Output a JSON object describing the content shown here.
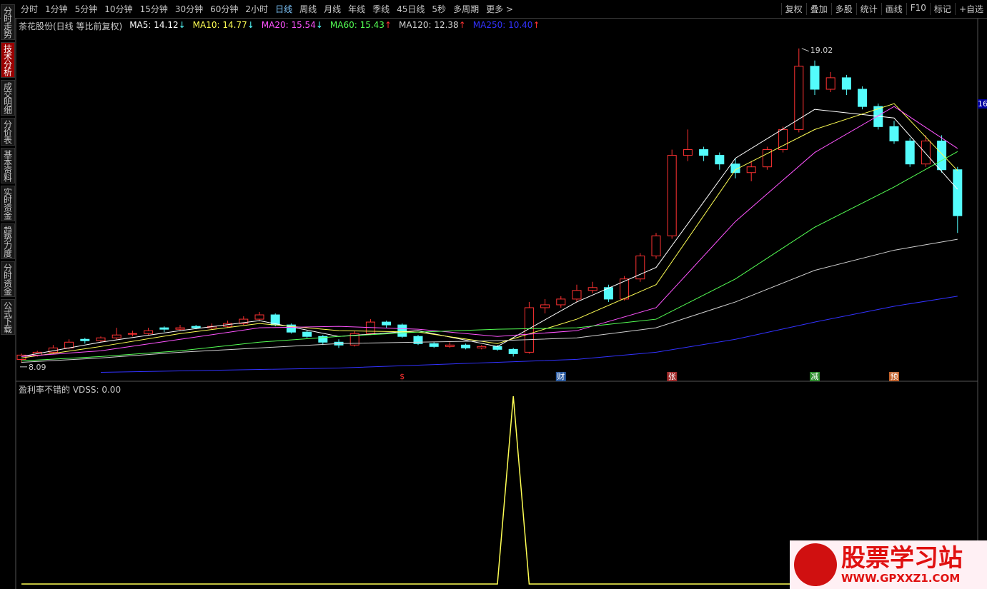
{
  "toolbar": {
    "items": [
      "分时",
      "1分钟",
      "5分钟",
      "10分钟",
      "15分钟",
      "30分钟",
      "60分钟",
      "2小时",
      "日线",
      "周线",
      "月线",
      "年线",
      "季线",
      "45日线",
      "5秒",
      "多周期",
      "更多 >"
    ],
    "active_index": 8,
    "right_items": [
      "复权",
      "叠加",
      "多股",
      "统计",
      "画线",
      "F10",
      "标记",
      "+自选"
    ]
  },
  "side_tabs": [
    "分时走势",
    "技术分析",
    "成交明细",
    "分价表",
    "基本资料",
    "实时资金",
    "趋势力度",
    "分时资金",
    "公式下载"
  ],
  "side_active_index": 1,
  "right_tag": "16",
  "watermark": {
    "title": "股票学习站",
    "url": "WWW.GPXXZ1.COM"
  },
  "chart_data": [
    {
      "type": "candlestick",
      "title": "茶花股份(日线 等比前复权)",
      "ylim": [
        7.54,
        19.96
      ],
      "up_color": "#ff3232",
      "down_color": "#54fcfc",
      "candles": [
        [
          8.2,
          8.4,
          8.09,
          8.35
        ],
        [
          8.35,
          8.5,
          8.3,
          8.45
        ],
        [
          8.45,
          8.7,
          8.4,
          8.6
        ],
        [
          8.6,
          8.9,
          8.55,
          8.8
        ],
        [
          8.9,
          8.95,
          8.75,
          8.85
        ],
        [
          8.85,
          9.0,
          8.8,
          8.95
        ],
        [
          8.95,
          9.3,
          8.9,
          9.05
        ],
        [
          9.1,
          9.2,
          9.0,
          9.1
        ],
        [
          9.1,
          9.3,
          9.05,
          9.2
        ],
        [
          9.3,
          9.35,
          9.15,
          9.25
        ],
        [
          9.25,
          9.4,
          9.2,
          9.3
        ],
        [
          9.35,
          9.4,
          9.25,
          9.3
        ],
        [
          9.3,
          9.45,
          9.25,
          9.35
        ],
        [
          9.35,
          9.55,
          9.3,
          9.45
        ],
        [
          9.45,
          9.7,
          9.4,
          9.6
        ],
        [
          9.6,
          9.85,
          9.55,
          9.75
        ],
        [
          9.75,
          9.8,
          9.35,
          9.4
        ],
        [
          9.4,
          9.45,
          9.1,
          9.15
        ],
        [
          9.15,
          9.2,
          8.95,
          9.0
        ],
        [
          9.0,
          9.05,
          8.7,
          8.8
        ],
        [
          8.8,
          8.9,
          8.6,
          8.7
        ],
        [
          8.7,
          9.2,
          8.65,
          9.1
        ],
        [
          9.1,
          9.6,
          9.05,
          9.5
        ],
        [
          9.5,
          9.55,
          9.3,
          9.4
        ],
        [
          9.4,
          9.45,
          8.95,
          9.0
        ],
        [
          9.0,
          9.05,
          8.7,
          8.75
        ],
        [
          8.75,
          8.8,
          8.6,
          8.65
        ],
        [
          8.65,
          8.8,
          8.6,
          8.7
        ],
        [
          8.7,
          8.75,
          8.55,
          8.6
        ],
        [
          8.6,
          8.7,
          8.55,
          8.65
        ],
        [
          8.65,
          8.7,
          8.5,
          8.55
        ],
        [
          8.55,
          8.6,
          8.3,
          8.4
        ],
        [
          8.45,
          10.2,
          8.4,
          10.0
        ],
        [
          10.0,
          10.3,
          9.8,
          10.1
        ],
        [
          10.1,
          10.4,
          10.0,
          10.3
        ],
        [
          10.3,
          10.8,
          10.2,
          10.6
        ],
        [
          10.6,
          10.9,
          10.5,
          10.7
        ],
        [
          10.7,
          10.8,
          10.2,
          10.3
        ],
        [
          10.3,
          11.1,
          10.25,
          11.0
        ],
        [
          11.0,
          11.9,
          10.9,
          11.8
        ],
        [
          11.8,
          12.6,
          11.7,
          12.5
        ],
        [
          12.5,
          15.5,
          12.4,
          15.3
        ],
        [
          15.3,
          16.2,
          15.1,
          15.5
        ],
        [
          15.5,
          15.6,
          15.1,
          15.3
        ],
        [
          15.3,
          15.4,
          14.8,
          15.0
        ],
        [
          15.0,
          15.2,
          14.5,
          14.7
        ],
        [
          14.7,
          15.1,
          14.4,
          14.9
        ],
        [
          14.9,
          15.6,
          14.8,
          15.5
        ],
        [
          15.5,
          16.3,
          15.4,
          16.2
        ],
        [
          16.2,
          19.02,
          16.1,
          18.4
        ],
        [
          18.4,
          18.6,
          17.4,
          17.6
        ],
        [
          17.6,
          18.2,
          17.5,
          18.0
        ],
        [
          18.0,
          18.1,
          17.4,
          17.6
        ],
        [
          17.6,
          17.7,
          16.9,
          17.0
        ],
        [
          17.0,
          17.1,
          16.2,
          16.3
        ],
        [
          16.3,
          16.5,
          15.7,
          15.8
        ],
        [
          15.8,
          15.9,
          14.9,
          15.0
        ],
        [
          15.0,
          16.0,
          14.9,
          15.8
        ],
        [
          15.8,
          16.0,
          14.7,
          14.8
        ],
        [
          14.8,
          14.9,
          12.6,
          13.2
        ]
      ],
      "ma_x": [
        0,
        5,
        10,
        15,
        20,
        25,
        30,
        35,
        40,
        45,
        50,
        55,
        59
      ],
      "series": [
        {
          "name": "MA5",
          "legend": "MA5: 14.12",
          "trend": "↓",
          "color": "#ffffff",
          "values": [
            8.3,
            8.8,
            9.2,
            9.55,
            9.0,
            9.2,
            8.65,
            10.2,
            11.4,
            15.2,
            16.9,
            16.6,
            14.12
          ]
        },
        {
          "name": "MA10",
          "legend": "MA10: 14.77",
          "trend": "↓",
          "color": "#ffff54",
          "values": [
            8.25,
            8.65,
            9.1,
            9.45,
            9.2,
            9.15,
            8.75,
            9.6,
            10.8,
            14.8,
            16.2,
            17.1,
            14.77
          ]
        },
        {
          "name": "MA20",
          "legend": "MA20: 15.54",
          "trend": "↓",
          "color": "#ff54ff",
          "values": [
            8.3,
            8.5,
            8.9,
            9.3,
            9.35,
            9.25,
            9.0,
            9.2,
            10.0,
            13.0,
            15.4,
            17.0,
            15.54
          ]
        },
        {
          "name": "MA60",
          "legend": "MA60: 15.43",
          "trend": "↑",
          "color": "#54ff54",
          "values": [
            8.15,
            8.3,
            8.5,
            8.8,
            9.0,
            9.15,
            9.25,
            9.3,
            9.6,
            11.0,
            12.8,
            14.2,
            15.43
          ]
        },
        {
          "name": "MA120",
          "legend": "MA120: 12.38",
          "trend": "↑",
          "color": "#d0d0d0",
          "values": [
            8.1,
            8.25,
            8.45,
            8.6,
            8.75,
            8.8,
            8.85,
            8.95,
            9.3,
            10.2,
            11.3,
            12.0,
            12.38
          ]
        },
        {
          "name": "MA250",
          "legend": "MA250: 10.40",
          "trend": "↑",
          "color": "#3232ff",
          "values": [
            null,
            7.75,
            7.8,
            7.85,
            7.9,
            8.0,
            8.1,
            8.2,
            8.45,
            8.9,
            9.5,
            10.05,
            10.4
          ]
        }
      ],
      "high_label": 19.02,
      "high_index": 49,
      "low_label": 8.09,
      "low_index": 0,
      "events": [
        {
          "label": "$",
          "index": 24,
          "color": "#ff3232"
        },
        {
          "label": "财",
          "index": 34,
          "color": "#2a5aa0"
        },
        {
          "label": "张",
          "index": 41,
          "color": "#a02a2a"
        },
        {
          "label": "减",
          "index": 50,
          "color": "#2a8a2a"
        },
        {
          "label": "预",
          "index": 55,
          "color": "#c0602a"
        }
      ]
    },
    {
      "type": "line",
      "title": "盈利率不错的 VDSS: 0.00",
      "color": "#ffff54",
      "ylim": [
        0,
        1
      ],
      "values": [
        0,
        0,
        0,
        0,
        0,
        0,
        0,
        0,
        0,
        0,
        0,
        0,
        0,
        0,
        0,
        0,
        0,
        0,
        0,
        0,
        0,
        0,
        0,
        0,
        0,
        0,
        0,
        0,
        0,
        0,
        0,
        1,
        0,
        0,
        0,
        0,
        0,
        0,
        0,
        0,
        0,
        0,
        0,
        0,
        0,
        0,
        0,
        0,
        0,
        0,
        0,
        0,
        0,
        0,
        0,
        0,
        0,
        0,
        0,
        0
      ]
    }
  ]
}
